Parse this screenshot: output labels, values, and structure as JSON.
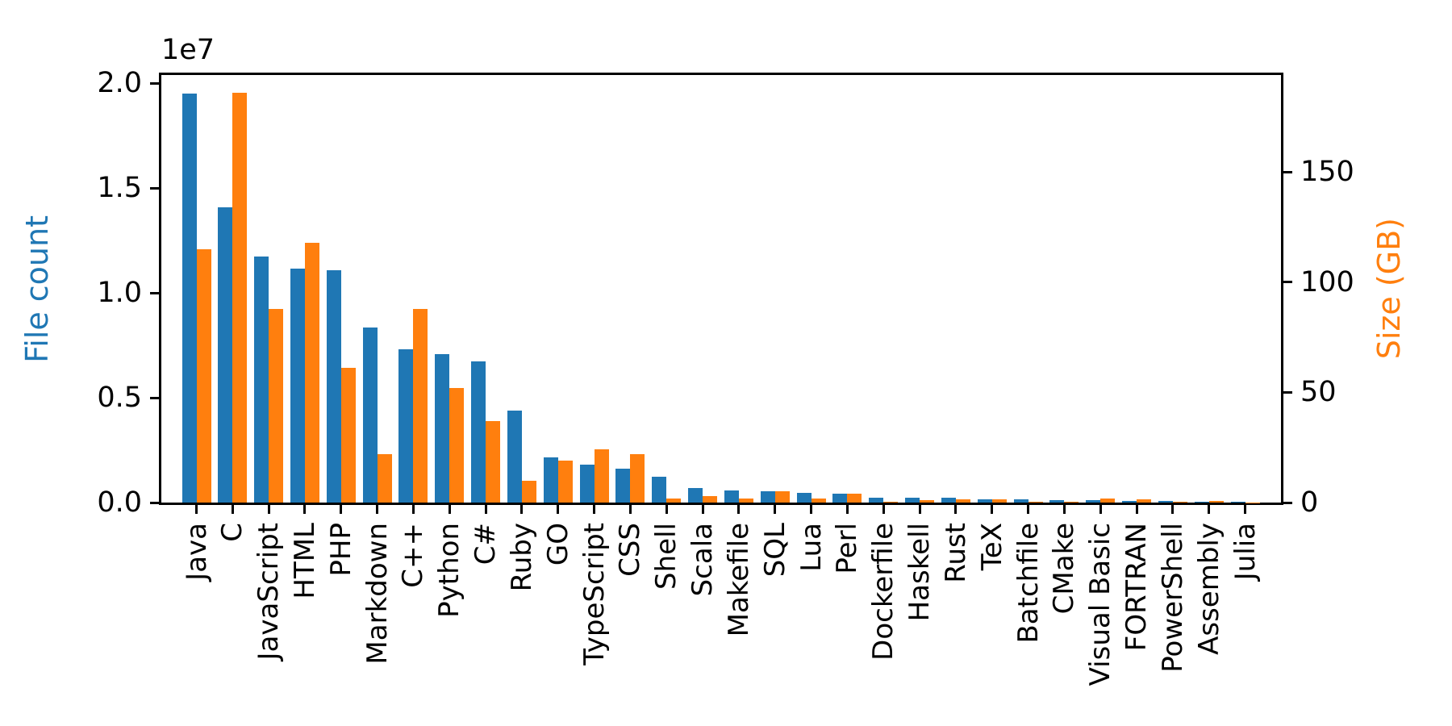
{
  "figure": {
    "title": "",
    "left_axis": {
      "label": "File count",
      "color": "#1f77b4",
      "offset_text": "1e7",
      "tick_labels": [
        "0.0",
        "0.5",
        "1.0",
        "1.5",
        "2.0"
      ],
      "tick_values": [
        0,
        5000000,
        10000000,
        15000000,
        20000000
      ],
      "ylim": [
        0,
        20400000
      ]
    },
    "right_axis": {
      "label": "Size (GB)",
      "color": "#ff7f0e",
      "tick_labels": [
        "0",
        "50",
        "100",
        "150"
      ],
      "tick_values": [
        0,
        50,
        100,
        150
      ],
      "ylim": [
        0,
        194
      ]
    }
  },
  "chart_data": {
    "type": "bar",
    "grid": false,
    "legend": "none",
    "categories": [
      "Java",
      "C",
      "JavaScript",
      "HTML",
      "PHP",
      "Markdown",
      "C++",
      "Python",
      "C#",
      "Ruby",
      "GO",
      "TypeScript",
      "CSS",
      "Shell",
      "Scala",
      "Makefile",
      "SQL",
      "Lua",
      "Perl",
      "Dockerfile",
      "Haskell",
      "Rust",
      "TeX",
      "Batchfile",
      "CMake",
      "Visual Basic",
      "FORTRAN",
      "PowerShell",
      "Assembly",
      "Julia"
    ],
    "series": [
      {
        "name": "File count",
        "axis": "left",
        "color": "#1f77b4",
        "values": [
          19500000,
          14100000,
          11750000,
          11150000,
          11100000,
          8350000,
          7300000,
          7100000,
          6750000,
          4400000,
          2150000,
          1800000,
          1600000,
          1250000,
          700000,
          580000,
          560000,
          480000,
          410000,
          240000,
          230000,
          220000,
          160000,
          140000,
          110000,
          100000,
          75000,
          65000,
          45000,
          30000
        ]
      },
      {
        "name": "Size (GB)",
        "axis": "right",
        "color": "#ff7f0e",
        "values": [
          115,
          186,
          88,
          118,
          61,
          22,
          88,
          52,
          37,
          10,
          19,
          24,
          22,
          2,
          3,
          2,
          5,
          2,
          4,
          0.5,
          1,
          1.5,
          1.5,
          0.3,
          0.3,
          1.8,
          1.3,
          0.4,
          0.6,
          0.2
        ]
      }
    ]
  }
}
